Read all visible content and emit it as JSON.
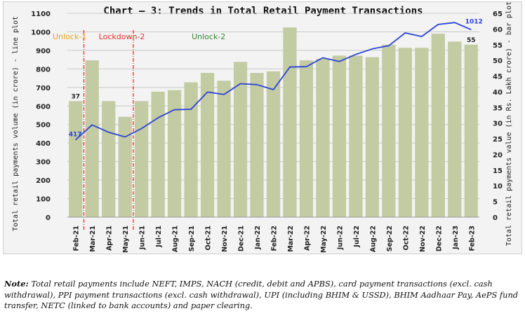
{
  "chart_data": {
    "type": "bar+line",
    "title": "Chart – 3: Trends in Total Retail Payment Transactions",
    "categories": [
      "Feb-21",
      "Mar-21",
      "Apr-21",
      "May-21",
      "Jun-21",
      "Jul-21",
      "Aug-21",
      "Sep-21",
      "Oct-21",
      "Nov-21",
      "Dec-21",
      "Jan-22",
      "Feb-22",
      "Mar-22",
      "Apr-22",
      "May-22",
      "Jun-22",
      "Jul-22",
      "Aug-22",
      "Sep-22",
      "Oct-22",
      "Nov-22",
      "Dec-22",
      "Jan-23",
      "Feb-23"
    ],
    "left_axis": {
      "label": "Total retail payments volume (in crore) - line plot",
      "ylim": [
        0,
        1100
      ],
      "ticks": [
        0,
        100,
        200,
        300,
        400,
        500,
        600,
        700,
        800,
        900,
        1000,
        1100
      ]
    },
    "right_axis": {
      "label": "Total retail payments value (in Rs. Lakh crore) - bar plot",
      "ylim": [
        0,
        65
      ],
      "ticks": [
        0,
        5,
        10,
        15,
        20,
        25,
        30,
        35,
        40,
        45,
        50,
        55,
        60,
        65
      ]
    },
    "series": [
      {
        "name": "Total retail payments value (Rs. Lakh crore)",
        "type": "bar",
        "axis": "right",
        "color": "#c3cba3",
        "values": [
          37,
          50,
          37,
          32,
          37,
          40,
          40.5,
          43,
          46,
          43.5,
          49.5,
          46,
          46.5,
          60.5,
          50,
          50.5,
          51.5,
          51.5,
          51,
          55,
          54,
          54,
          58.5,
          56,
          55
        ]
      },
      {
        "name": "Total retail payments volume (crore)",
        "type": "line",
        "axis": "left",
        "color": "#2b44d6",
        "values": [
          417,
          498,
          458,
          433,
          478,
          536,
          580,
          582,
          675,
          662,
          720,
          715,
          688,
          810,
          812,
          860,
          840,
          878,
          908,
          925,
          994,
          975,
          1040,
          1050,
          1012
        ]
      }
    ],
    "data_labels": [
      {
        "series": "bar",
        "category": "Feb-21",
        "text": "37"
      },
      {
        "series": "bar",
        "category": "Feb-23",
        "text": "55"
      },
      {
        "series": "line",
        "category": "Feb-21",
        "text": "417"
      },
      {
        "series": "line",
        "category": "Feb-23",
        "text": "1012"
      }
    ],
    "phases": [
      {
        "label": "Unlock-1",
        "color": "#f0a020"
      },
      {
        "label": "Lockdown-2",
        "color": "#e03030"
      },
      {
        "label": "Unlock-2",
        "color": "#2e8b2e"
      }
    ],
    "phase_dividers": [
      {
        "between": [
          "Feb-21",
          "Mar-21"
        ],
        "color": "#e03030"
      },
      {
        "between": [
          "May-21",
          "Jun-21"
        ],
        "color": "#e03030"
      }
    ],
    "grid": true
  },
  "note": {
    "prefix": "Note:",
    "text": " Total retail payments include NEFT, IMPS, NACH (credit, debit and APBS), card payment transactions (excl. cash withdrawal), PPI payment transactions (excl. cash withdrawal), UPI (including BHIM & USSD), BHIM Aadhaar Pay, AePS fund transfer, NETC (linked to bank accounts) and paper clearing."
  }
}
